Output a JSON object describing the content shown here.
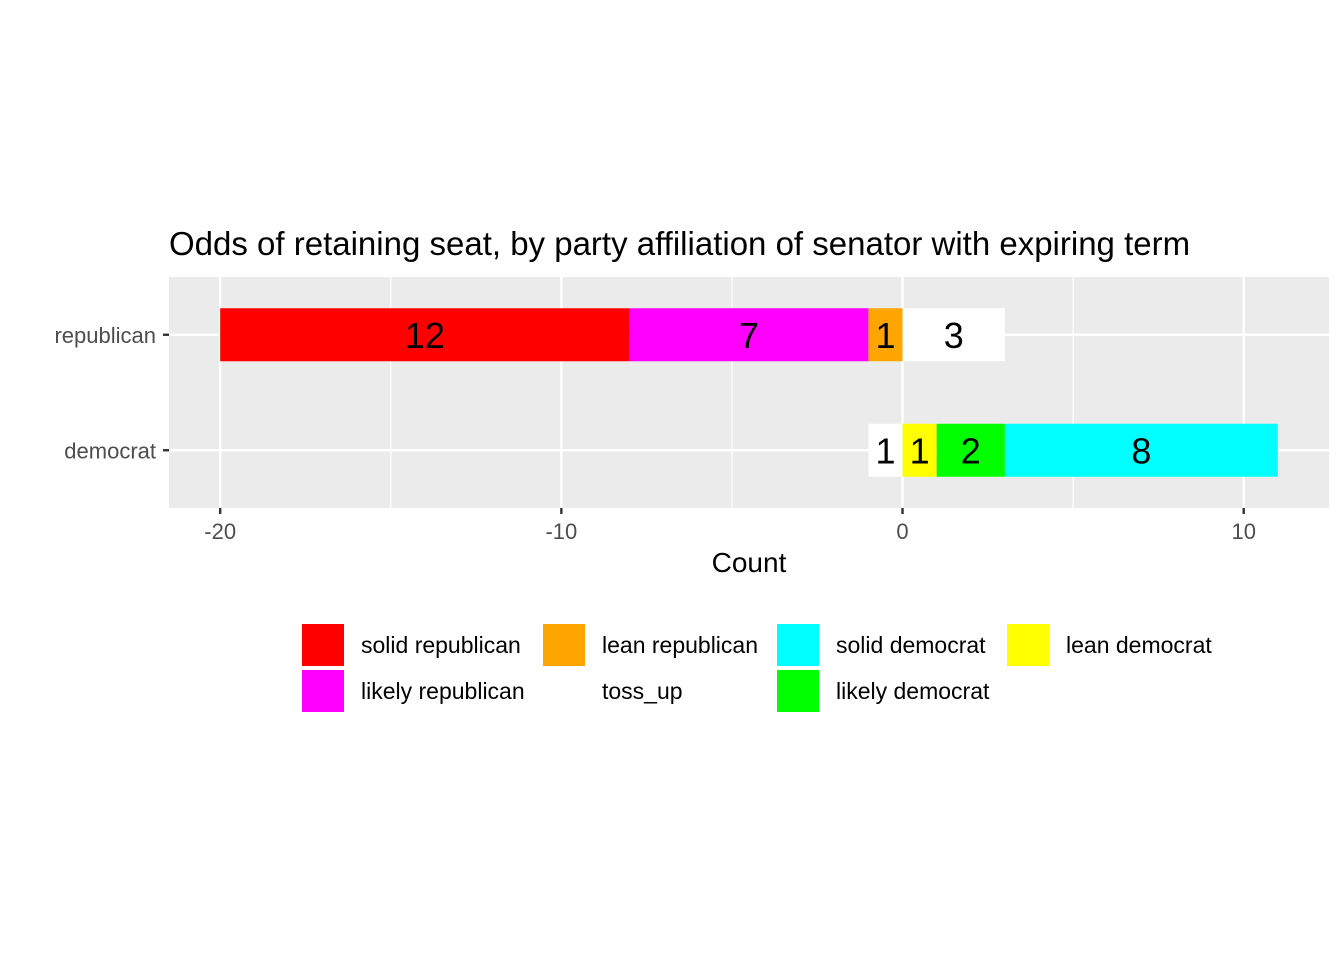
{
  "chart_data": {
    "type": "bar",
    "orientation": "horizontal",
    "stacked": "diverging",
    "title": "Odds of retaining seat, by party affiliation of senator with expiring term",
    "xlabel": "Count",
    "ylabel": "",
    "xlim": [
      -21.5,
      12.5
    ],
    "xticks": [
      -20,
      -10,
      0,
      10
    ],
    "xtick_labels": [
      "-20",
      "-10",
      "0",
      "10"
    ],
    "categories": [
      "republican",
      "democrat"
    ],
    "series": [
      {
        "name": "solid republican",
        "color": "#ff0000",
        "category": "republican",
        "start": -20,
        "end": -8,
        "value": 12,
        "label": "12"
      },
      {
        "name": "likely republican",
        "color": "#ff00ff",
        "category": "republican",
        "start": -8,
        "end": -1,
        "value": 7,
        "label": "7"
      },
      {
        "name": "lean republican",
        "color": "#ffa500",
        "category": "republican",
        "start": -1,
        "end": 0,
        "value": 1,
        "label": "1"
      },
      {
        "name": "toss_up",
        "color": "#ffffff",
        "category": "republican",
        "start": 0,
        "end": 3,
        "value": 3,
        "label": "3"
      },
      {
        "name": "toss_up",
        "color": "#ffffff",
        "category": "democrat",
        "start": -1,
        "end": 0,
        "value": 1,
        "label": "1"
      },
      {
        "name": "lean democrat",
        "color": "#ffff00",
        "category": "democrat",
        "start": 0,
        "end": 1,
        "value": 1,
        "label": "1"
      },
      {
        "name": "likely democrat",
        "color": "#00ff00",
        "category": "democrat",
        "start": 1,
        "end": 3,
        "value": 2,
        "label": "2"
      },
      {
        "name": "solid democrat",
        "color": "#00ffff",
        "category": "democrat",
        "start": 3,
        "end": 11,
        "value": 8,
        "label": "8"
      }
    ],
    "grid": true,
    "legend_position": "bottom",
    "legend": [
      {
        "label": "solid republican",
        "color": "#ff0000"
      },
      {
        "label": "likely republican",
        "color": "#ff00ff"
      },
      {
        "label": "lean republican",
        "color": "#ffa500"
      },
      {
        "label": "toss_up",
        "color": "#ffffff"
      },
      {
        "label": "solid democrat",
        "color": "#00ffff"
      },
      {
        "label": "likely democrat",
        "color": "#00ff00"
      },
      {
        "label": "lean democrat",
        "color": "#ffff00"
      }
    ]
  }
}
